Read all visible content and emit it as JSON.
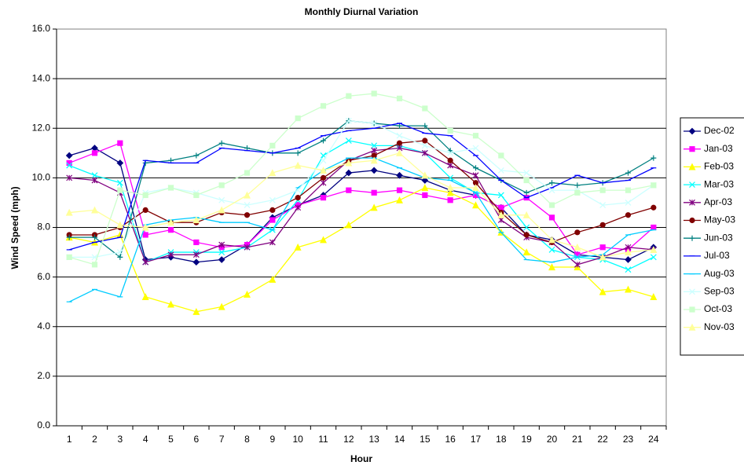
{
  "chart_data": {
    "type": "line",
    "title": "Monthly Diurnal Variation",
    "x_label": "Hour",
    "y_label": "Wind Speed (mph)",
    "categories": [
      1,
      2,
      3,
      4,
      5,
      6,
      7,
      8,
      9,
      10,
      11,
      12,
      13,
      14,
      15,
      16,
      17,
      18,
      19,
      20,
      21,
      22,
      23,
      24
    ],
    "ylim": [
      0,
      16
    ],
    "yticks": [
      {
        "value": 0,
        "label": "0.0"
      },
      {
        "value": 2,
        "label": "2.0"
      },
      {
        "value": 4,
        "label": "4.0"
      },
      {
        "value": 6,
        "label": "6.0"
      },
      {
        "value": 8,
        "label": "8.0"
      },
      {
        "value": 10,
        "label": "10.0"
      },
      {
        "value": 12,
        "label": "12.0"
      },
      {
        "value": 14,
        "label": "14.0"
      },
      {
        "value": 16,
        "label": "16.0"
      }
    ],
    "grid": true,
    "legend": "right",
    "series": [
      {
        "name": "Dec-02",
        "color": "#000080",
        "marker": "diamond",
        "values": [
          10.9,
          11.2,
          10.6,
          6.7,
          6.8,
          6.6,
          6.7,
          7.3,
          8.4,
          8.9,
          9.3,
          10.2,
          10.3,
          10.1,
          9.9,
          9.5,
          9.3,
          8.8,
          7.7,
          7.5,
          6.9,
          6.8,
          6.7,
          7.2
        ]
      },
      {
        "name": "Jan-03",
        "color": "#FF00FF",
        "marker": "square",
        "values": [
          10.6,
          11.0,
          11.4,
          7.7,
          7.9,
          7.4,
          7.2,
          7.3,
          8.3,
          8.9,
          9.2,
          9.5,
          9.4,
          9.5,
          9.3,
          9.1,
          9.3,
          8.8,
          9.2,
          8.4,
          6.9,
          7.2,
          7.1,
          8.0
        ]
      },
      {
        "name": "Feb-03",
        "color": "#FFFF00",
        "marker": "triangle",
        "values": [
          7.6,
          7.4,
          7.7,
          5.2,
          4.9,
          4.6,
          4.8,
          5.3,
          5.9,
          7.2,
          7.5,
          8.1,
          8.8,
          9.1,
          9.6,
          9.4,
          8.9,
          7.8,
          7.0,
          6.4,
          6.4,
          5.4,
          5.5,
          5.2
        ]
      },
      {
        "name": "Mar-03",
        "color": "#00FFFF",
        "marker": "x",
        "values": [
          10.5,
          10.1,
          9.8,
          6.6,
          7.0,
          7.0,
          7.0,
          7.2,
          7.9,
          9.1,
          10.9,
          11.5,
          11.3,
          11.3,
          11.0,
          10.0,
          9.4,
          9.3,
          8.0,
          7.1,
          6.8,
          6.7,
          6.3,
          6.8
        ]
      },
      {
        "name": "Apr-03",
        "color": "#800080",
        "marker": "star",
        "values": [
          10.0,
          9.9,
          9.4,
          6.6,
          6.9,
          6.9,
          7.3,
          7.2,
          7.4,
          8.8,
          9.8,
          10.7,
          11.1,
          11.2,
          11.0,
          10.5,
          10.1,
          8.3,
          7.6,
          7.4,
          6.5,
          6.8,
          7.2,
          7.1
        ]
      },
      {
        "name": "May-03",
        "color": "#800000",
        "marker": "circle",
        "values": [
          7.7,
          7.7,
          8.0,
          8.7,
          8.2,
          8.2,
          8.6,
          8.5,
          8.7,
          9.2,
          10.0,
          10.7,
          10.9,
          11.4,
          11.5,
          10.7,
          9.8,
          8.6,
          7.7,
          7.4,
          7.8,
          8.1,
          8.5,
          8.8
        ]
      },
      {
        "name": "Jun-03",
        "color": "#008080",
        "marker": "plus",
        "values": [
          7.6,
          7.6,
          6.8,
          10.6,
          10.7,
          10.9,
          11.4,
          11.2,
          11.0,
          11.0,
          11.5,
          12.3,
          12.2,
          12.1,
          12.1,
          11.1,
          10.4,
          9.9,
          9.4,
          9.8,
          9.7,
          9.8,
          10.2,
          10.8
        ]
      },
      {
        "name": "Jul-03",
        "color": "#0000FF",
        "marker": "dash",
        "values": [
          7.1,
          7.4,
          7.6,
          10.7,
          10.6,
          10.6,
          11.2,
          11.1,
          11.0,
          11.2,
          11.7,
          11.9,
          12.0,
          12.2,
          11.8,
          11.7,
          10.9,
          9.9,
          9.2,
          9.6,
          10.1,
          9.8,
          9.9,
          10.4
        ]
      },
      {
        "name": "Aug-03",
        "color": "#00CCFF",
        "marker": "dash",
        "values": [
          5.0,
          5.5,
          5.2,
          8.1,
          8.3,
          8.4,
          8.2,
          8.2,
          7.9,
          9.6,
          10.3,
          10.8,
          10.8,
          10.4,
          10.0,
          9.9,
          9.4,
          7.8,
          6.7,
          6.6,
          6.8,
          6.9,
          7.7,
          7.9
        ]
      },
      {
        "name": "Sep-03",
        "color": "#CCFFFF",
        "marker": "x",
        "values": [
          6.8,
          6.8,
          7.0,
          9.4,
          9.6,
          9.4,
          9.1,
          8.9,
          9.1,
          9.5,
          10.7,
          12.3,
          12.2,
          11.7,
          11.3,
          11.0,
          11.2,
          10.3,
          10.2,
          9.5,
          9.5,
          8.9,
          9.0,
          9.7
        ]
      },
      {
        "name": "Oct-03",
        "color": "#CCFFCC",
        "marker": "square",
        "values": [
          6.8,
          6.5,
          9.5,
          9.3,
          9.6,
          9.3,
          9.7,
          10.2,
          11.3,
          12.4,
          12.9,
          13.3,
          13.4,
          13.2,
          12.8,
          11.9,
          11.7,
          10.9,
          9.9,
          8.9,
          9.4,
          9.5,
          9.5,
          9.7
        ]
      },
      {
        "name": "Nov-03",
        "color": "#FFFF99",
        "marker": "triangle",
        "values": [
          8.6,
          8.7,
          8.1,
          8.0,
          8.2,
          8.3,
          8.7,
          9.3,
          10.2,
          10.5,
          10.3,
          10.6,
          10.7,
          11.0,
          10.1,
          9.6,
          9.6,
          8.5,
          8.5,
          7.5,
          7.2,
          6.8,
          7.0,
          7.1
        ]
      }
    ]
  }
}
